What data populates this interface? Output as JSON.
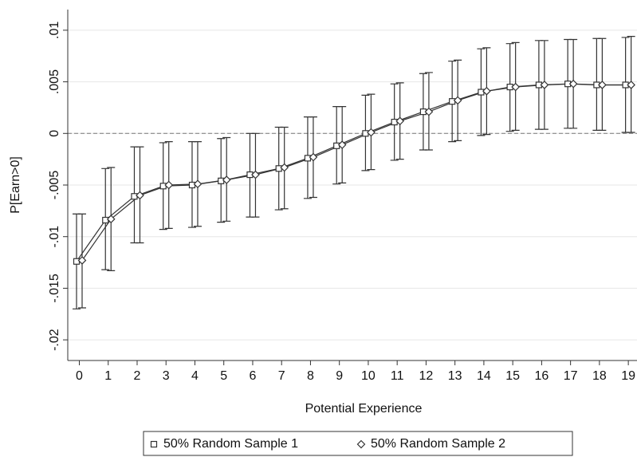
{
  "chart_data": {
    "type": "errorbar-line",
    "x_label": "Potential Experience",
    "y_label": "P[Earn>0]",
    "x": [
      0,
      1,
      2,
      3,
      4,
      5,
      6,
      7,
      8,
      9,
      10,
      11,
      12,
      13,
      14,
      15,
      16,
      17,
      18,
      19
    ],
    "xlim": [
      -0.4,
      19.3
    ],
    "xticks": [
      0,
      1,
      2,
      3,
      4,
      5,
      6,
      7,
      8,
      9,
      10,
      11,
      12,
      13,
      14,
      15,
      16,
      17,
      18,
      19
    ],
    "ylim": [
      -0.022,
      0.012
    ],
    "yticks": [
      {
        "value": 0.01,
        "label": ".01"
      },
      {
        "value": 0.005,
        "label": ".005"
      },
      0,
      {
        "value": -0.005,
        "label": "-.005"
      },
      {
        "value": -0.01,
        "label": "-.01"
      },
      {
        "value": -0.015,
        "label": "-.015"
      },
      {
        "value": -0.02,
        "label": "-.02"
      }
    ],
    "grid": true,
    "reference_line": 0,
    "series": [
      {
        "name": "50% Random Sample 1",
        "color": "#333333",
        "marker": "square",
        "values": [
          -0.0124,
          -0.0084,
          -0.0061,
          -0.0051,
          -0.005,
          -0.0046,
          -0.004,
          -0.0034,
          -0.0024,
          -0.0012,
          0.0,
          0.0011,
          0.0021,
          0.0031,
          0.004,
          0.0045,
          0.0047,
          0.0048,
          0.0047,
          0.0047
        ],
        "lower": [
          -0.017,
          -0.0132,
          -0.0106,
          -0.0093,
          -0.0091,
          -0.0086,
          -0.0081,
          -0.0074,
          -0.0063,
          -0.0049,
          -0.0036,
          -0.0026,
          -0.0016,
          -0.0008,
          -0.0002,
          0.0002,
          0.0004,
          0.0005,
          0.0003,
          0.0001
        ],
        "upper": [
          -0.0078,
          -0.0034,
          -0.0013,
          -0.0009,
          -0.0008,
          -0.0005,
          0.0,
          0.0006,
          0.0016,
          0.0026,
          0.0037,
          0.0048,
          0.0058,
          0.007,
          0.0082,
          0.0087,
          0.009,
          0.0091,
          0.0092,
          0.0093
        ]
      },
      {
        "name": "50% Random Sample 2",
        "color": "#333333",
        "marker": "diamond",
        "values": [
          -0.0123,
          -0.0083,
          -0.006,
          -0.005,
          -0.0049,
          -0.0045,
          -0.004,
          -0.0033,
          -0.0023,
          -0.0011,
          0.0001,
          0.0012,
          0.0021,
          0.0032,
          0.0041,
          0.0045,
          0.0047,
          0.0048,
          0.0047,
          0.0047
        ],
        "lower": [
          -0.0169,
          -0.0133,
          -0.0106,
          -0.0092,
          -0.009,
          -0.0085,
          -0.0081,
          -0.0073,
          -0.0062,
          -0.0048,
          -0.0035,
          -0.0025,
          -0.0016,
          -0.0007,
          -0.0001,
          0.0003,
          0.0004,
          0.0005,
          0.0003,
          0.0001
        ],
        "upper": [
          -0.0078,
          -0.0033,
          -0.0013,
          -0.0008,
          -0.0008,
          -0.0004,
          0.0,
          0.0006,
          0.0016,
          0.0026,
          0.0038,
          0.0049,
          0.0059,
          0.0071,
          0.0083,
          0.0088,
          0.009,
          0.0091,
          0.0092,
          0.0094
        ]
      }
    ]
  }
}
